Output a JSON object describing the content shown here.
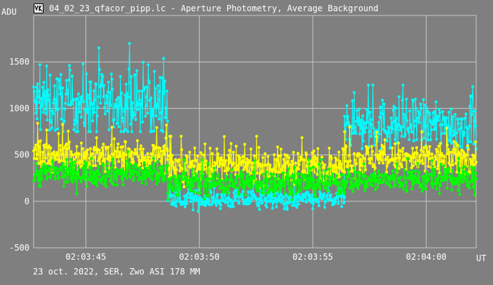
{
  "window": {
    "title": "04_02_23_qfacor_pipp.lc - Aperture Photometry, Average Background",
    "footer": "23 oct. 2022, SER, Zwo ASI 178 MM",
    "icon": "light-curve-app-icon"
  },
  "chart_data": {
    "type": "scatter",
    "title": "04_02_23_qfacor_pipp.lc - Aperture Photometry, Average Background",
    "xlabel": "UT",
    "ylabel": "ADU",
    "ylim": [
      -500,
      2000
    ],
    "xlim": [
      "02:03:42.7",
      "02:04:02.2"
    ],
    "yticks": [
      -500,
      0,
      500,
      1000,
      1500
    ],
    "xticks": [
      "02:03:45",
      "02:03:50",
      "02:03:55",
      "02:04:00"
    ],
    "grid": true,
    "background": "#7f7f7f",
    "grid_color": "#c8c8c8",
    "series": [
      {
        "color": "#00ffff",
        "points_style": "dots-with-lines",
        "segments": [
          {
            "x_start": "02:03:42.7",
            "x_end": "02:03:48.6",
            "mean": 1050,
            "spread": 180,
            "range": [
              750,
              1760
            ]
          },
          {
            "x_start": "02:03:48.6",
            "x_end": "02:03:56.4",
            "mean": 20,
            "spread": 50,
            "range": [
              -150,
              200
            ]
          },
          {
            "x_start": "02:03:56.4",
            "x_end": "02:04:02.2",
            "mean": 820,
            "spread": 140,
            "range": [
              450,
              1250
            ]
          }
        ]
      },
      {
        "color": "#ffff00",
        "points_style": "dots-with-lines",
        "segments": [
          {
            "x_start": "02:03:42.7",
            "x_end": "02:03:48.6",
            "mean": 480,
            "spread": 90,
            "range": [
              300,
              850
            ]
          },
          {
            "x_start": "02:03:48.6",
            "x_end": "02:03:56.4",
            "mean": 380,
            "spread": 90,
            "range": [
              150,
              700
            ]
          },
          {
            "x_start": "02:03:56.4",
            "x_end": "02:04:02.2",
            "mean": 450,
            "spread": 90,
            "range": [
              250,
              800
            ]
          }
        ]
      },
      {
        "color": "#00ff00",
        "points_style": "dots-with-lines",
        "segments": [
          {
            "x_start": "02:03:42.7",
            "x_end": "02:03:48.6",
            "mean": 300,
            "spread": 70,
            "range": [
              50,
              550
            ]
          },
          {
            "x_start": "02:03:48.6",
            "x_end": "02:03:56.4",
            "mean": 200,
            "spread": 70,
            "range": [
              0,
              450
            ]
          },
          {
            "x_start": "02:03:56.4",
            "x_end": "02:04:02.2",
            "mean": 230,
            "spread": 70,
            "range": [
              0,
              500
            ]
          }
        ]
      }
    ]
  }
}
